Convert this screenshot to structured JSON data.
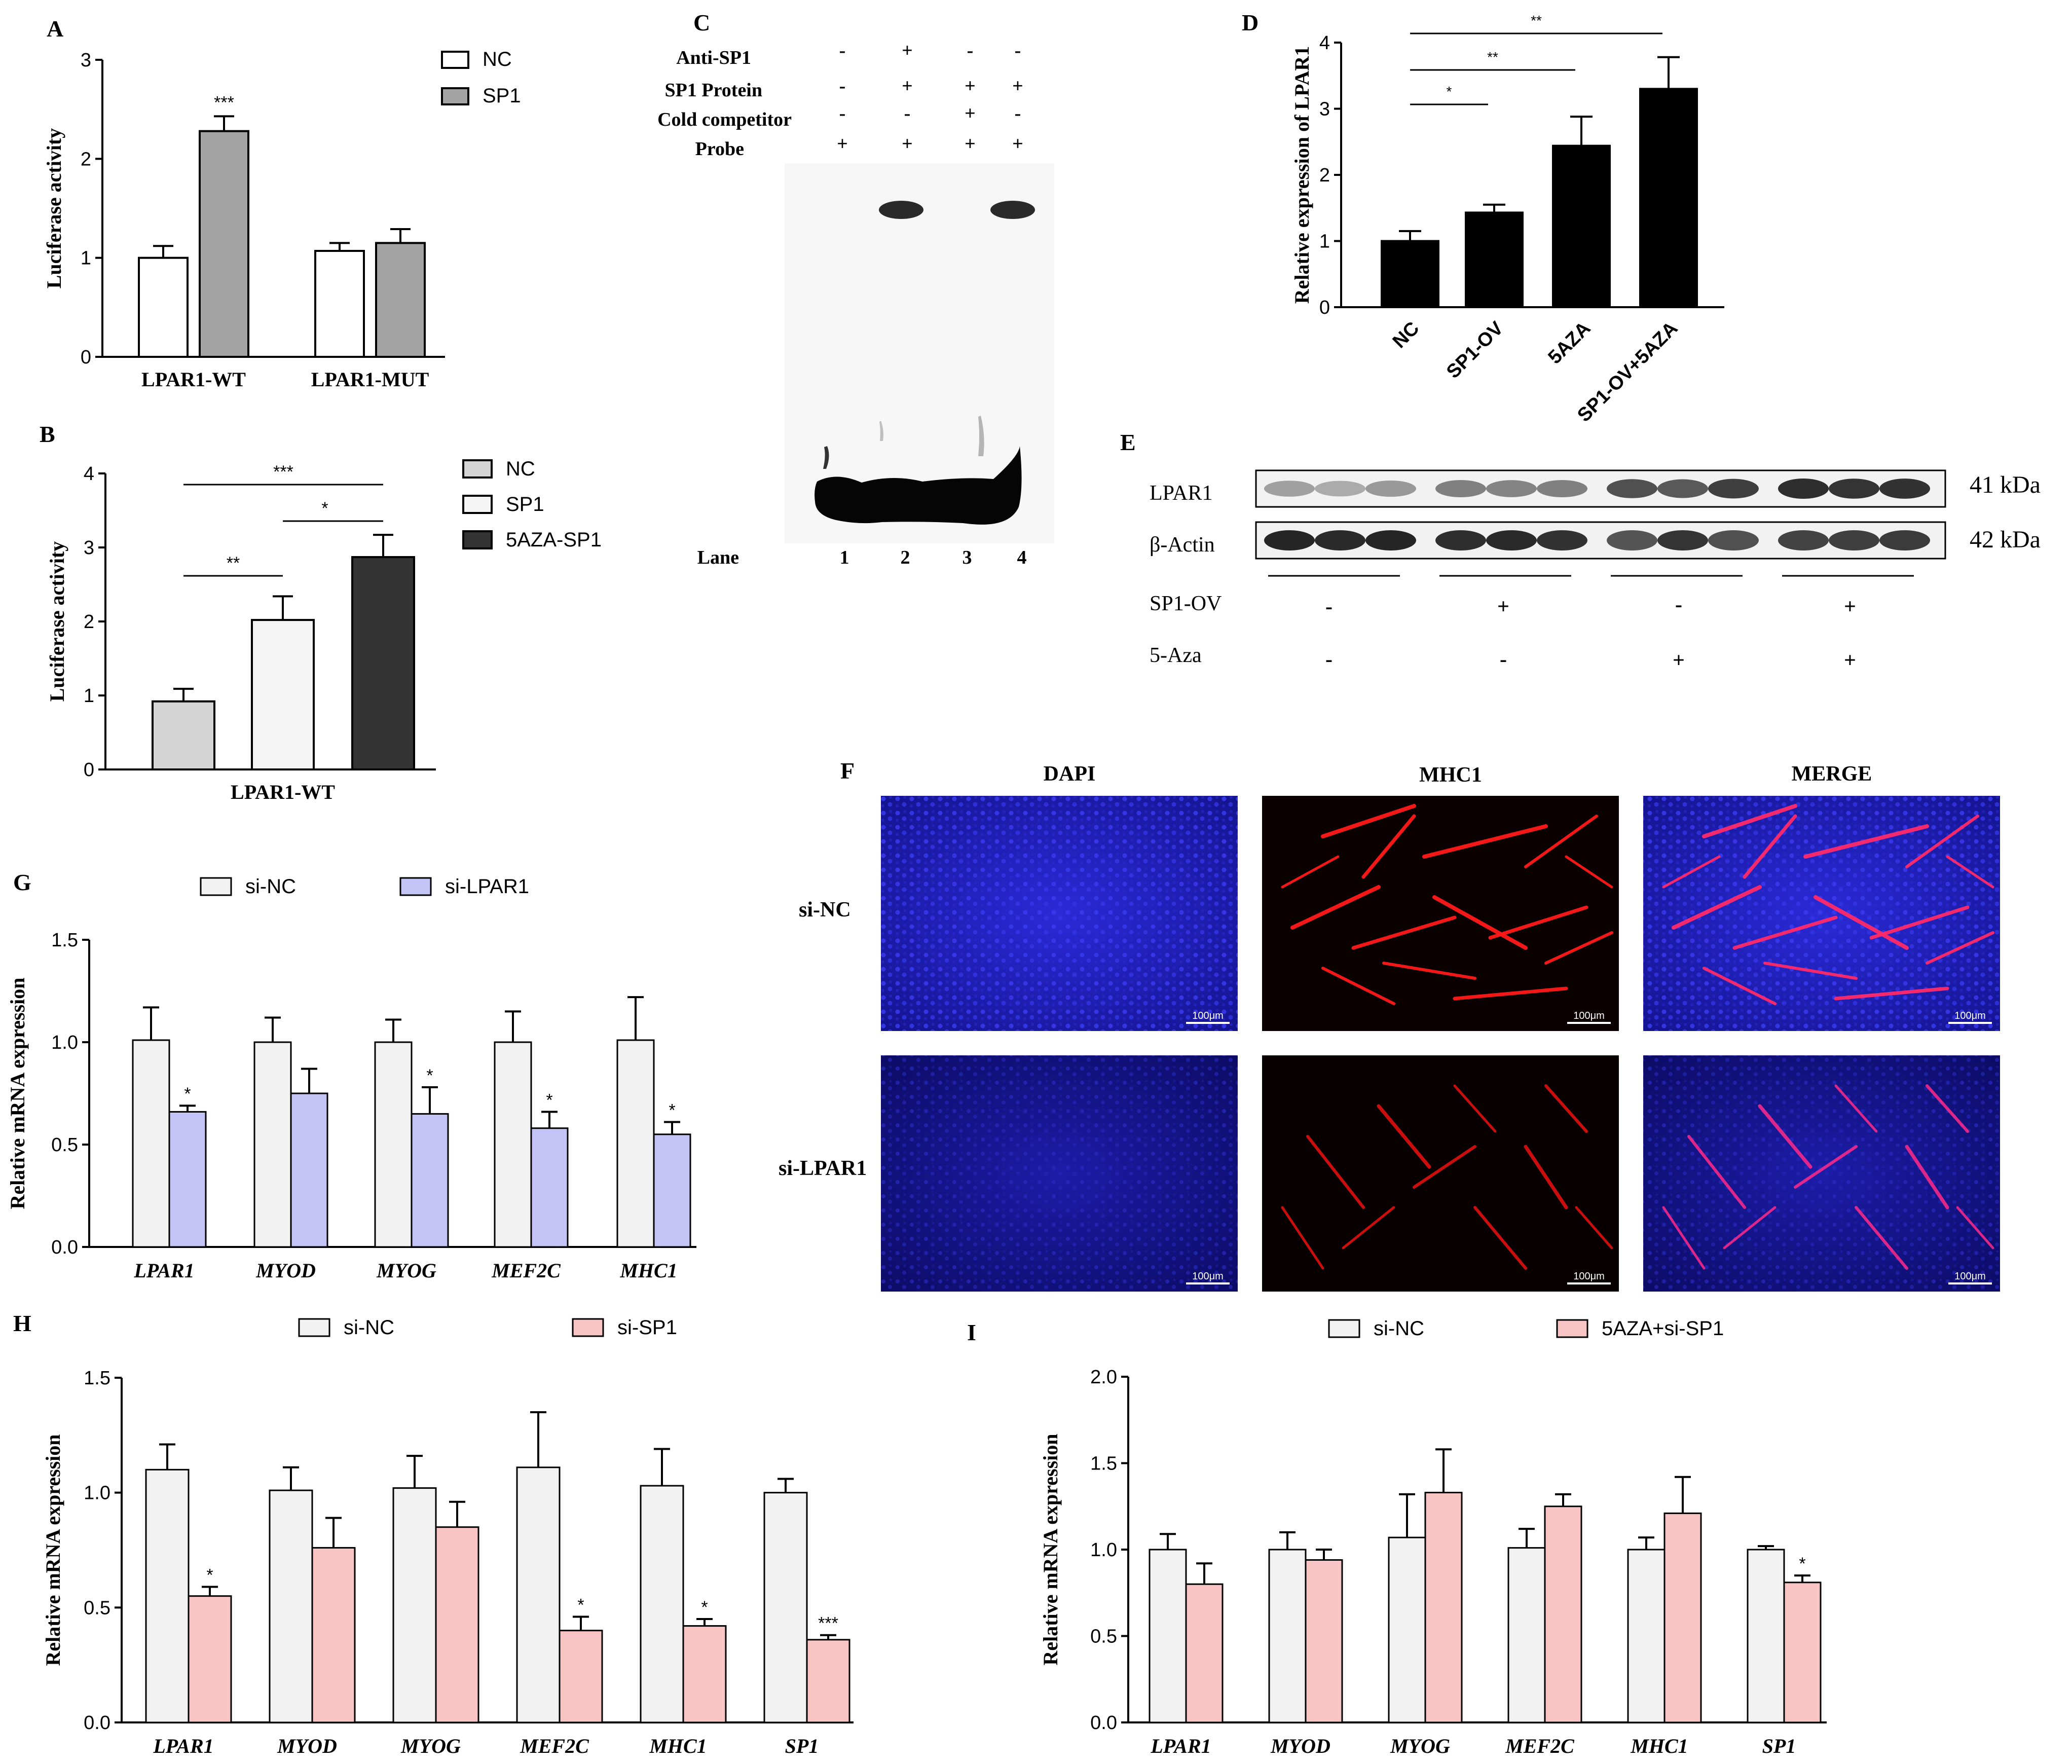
{
  "panels": {
    "A": "A",
    "B": "B",
    "C": "C",
    "D": "D",
    "E": "E",
    "F": "F",
    "G": "G",
    "H": "H",
    "I": "I"
  },
  "chart_data": [
    {
      "panel": "A",
      "type": "bar",
      "ylabel": "Luciferase activity",
      "ylim": [
        0,
        3
      ],
      "yticks": [
        "0",
        "1",
        "2",
        "3"
      ],
      "categories": [
        "LPAR1-WT",
        "LPAR1-MUT"
      ],
      "series": [
        {
          "name": "NC",
          "color": "#ffffff",
          "values": [
            1.0,
            1.07
          ],
          "err": [
            0.12,
            0.08
          ]
        },
        {
          "name": "SP1",
          "color": "#a3a3a3",
          "values": [
            2.28,
            1.15
          ],
          "err": [
            0.15,
            0.14
          ]
        }
      ],
      "sig": [
        {
          "text": "***",
          "category": 0,
          "series": 1
        }
      ]
    },
    {
      "panel": "B",
      "type": "bar",
      "ylabel": "Luciferase activity",
      "ylim": [
        0,
        4
      ],
      "yticks": [
        "0",
        "1",
        "2",
        "3",
        "4"
      ],
      "xlabel": "LPAR1-WT",
      "series": [
        {
          "name": "NC",
          "color": "#d4d4d4",
          "value": 0.92,
          "err": 0.17
        },
        {
          "name": "SP1",
          "color": "#f5f5f5",
          "value": 2.02,
          "err": 0.32
        },
        {
          "name": "5AZA-SP1",
          "color": "#333333",
          "value": 2.87,
          "err": 0.3
        }
      ],
      "brackets": [
        {
          "from": 0,
          "to": 1,
          "text": "**"
        },
        {
          "from": 1,
          "to": 2,
          "text": "*"
        },
        {
          "from": 0,
          "to": 2,
          "text": "***"
        }
      ]
    },
    {
      "panel": "D",
      "type": "bar",
      "ylabel": "Relative  expression of LPAR1",
      "ylim": [
        0,
        4
      ],
      "yticks": [
        "0",
        "1",
        "2",
        "3",
        "4"
      ],
      "categories": [
        "NC",
        "SP1-OV",
        "5AZA",
        "SP1-OV+5AZA"
      ],
      "values": [
        1.0,
        1.43,
        2.44,
        3.3
      ],
      "err": [
        0.15,
        0.12,
        0.44,
        0.48
      ],
      "brackets": [
        {
          "from": 0,
          "to": 1,
          "text": "*"
        },
        {
          "from": 0,
          "to": 2,
          "text": "**"
        },
        {
          "from": 0,
          "to": 3,
          "text": "**"
        }
      ]
    },
    {
      "panel": "G",
      "type": "bar",
      "ylabel": "Relative mRNA expression",
      "ylim": [
        0,
        1.5
      ],
      "yticks": [
        "0.0",
        "0.5",
        "1.0",
        "1.5"
      ],
      "categories": [
        "LPAR1",
        "MYOD",
        "MYOG",
        "MEF2C",
        "MHC1"
      ],
      "series": [
        {
          "name": "si-NC",
          "color": "#f2f2f2",
          "values": [
            1.01,
            1.0,
            1.0,
            1.0,
            1.01
          ],
          "err": [
            0.16,
            0.12,
            0.11,
            0.15,
            0.21
          ]
        },
        {
          "name": "si-LPAR1",
          "color": "#c3c3f5",
          "values": [
            0.66,
            0.75,
            0.65,
            0.58,
            0.55
          ],
          "err": [
            0.03,
            0.12,
            0.13,
            0.08,
            0.06
          ]
        }
      ],
      "sig": [
        "*",
        "",
        "*",
        "*",
        "*"
      ]
    },
    {
      "panel": "H",
      "type": "bar",
      "ylabel": "Relative mRNA expression",
      "ylim": [
        0,
        1.5
      ],
      "yticks": [
        "0.0",
        "0.5",
        "1.0",
        "1.5"
      ],
      "categories": [
        "LPAR1",
        "MYOD",
        "MYOG",
        "MEF2C",
        "MHC1",
        "SP1"
      ],
      "series": [
        {
          "name": "si-NC",
          "color": "#f2f2f2",
          "values": [
            1.1,
            1.01,
            1.02,
            1.11,
            1.03,
            1.0
          ],
          "err": [
            0.11,
            0.1,
            0.14,
            0.24,
            0.16,
            0.06
          ]
        },
        {
          "name": "si-SP1",
          "color": "#f9c4c4",
          "values": [
            0.55,
            0.76,
            0.85,
            0.4,
            0.42,
            0.36
          ],
          "err": [
            0.04,
            0.13,
            0.11,
            0.06,
            0.03,
            0.02
          ]
        }
      ],
      "sig": [
        "*",
        "",
        "",
        "*",
        "*",
        "***"
      ]
    },
    {
      "panel": "I",
      "type": "bar",
      "ylabel": "Relative mRNA expression",
      "ylim": [
        0,
        2.0
      ],
      "yticks": [
        "0.0",
        "0.5",
        "1.0",
        "1.5",
        "2.0"
      ],
      "categories": [
        "LPAR1",
        "MYOD",
        "MYOG",
        "MEF2C",
        "MHC1",
        "SP1"
      ],
      "series": [
        {
          "name": "si-NC",
          "color": "#f2f2f2",
          "values": [
            1.0,
            1.0,
            1.07,
            1.01,
            1.0,
            1.0
          ],
          "err": [
            0.09,
            0.1,
            0.25,
            0.11,
            0.07,
            0.02
          ]
        },
        {
          "name": "5AZA+si-SP1",
          "color": "#f9c4c4",
          "values": [
            0.8,
            0.94,
            1.33,
            1.25,
            1.21,
            0.81
          ],
          "err": [
            0.12,
            0.06,
            0.25,
            0.07,
            0.21,
            0.04
          ]
        }
      ],
      "sig": [
        "",
        "",
        "",
        "",
        "",
        "*"
      ]
    }
  ],
  "emsa": {
    "rows": [
      {
        "label": "Anti-SP1",
        "values": [
          "-",
          "+",
          "-",
          "-"
        ]
      },
      {
        "label": "SP1 Protein",
        "values": [
          "-",
          "+",
          "+",
          "+"
        ]
      },
      {
        "label": "Cold competitor",
        "values": [
          "-",
          "-",
          "+",
          "-"
        ]
      },
      {
        "label": "Probe",
        "values": [
          "+",
          "+",
          "+",
          "+"
        ]
      }
    ],
    "lane_label": "Lane",
    "lanes": [
      "1",
      "2",
      "3",
      "4"
    ]
  },
  "western": {
    "rows": [
      {
        "label": "LPAR1",
        "size": "41 kDa",
        "intensity": [
          0.35,
          0.3,
          0.38,
          0.5,
          0.48,
          0.5,
          0.72,
          0.68,
          0.8,
          0.88,
          0.85,
          0.86
        ]
      },
      {
        "label": "β-Actin",
        "size": "42 kDa",
        "intensity": [
          0.92,
          0.9,
          0.92,
          0.88,
          0.9,
          0.86,
          0.7,
          0.85,
          0.72,
          0.78,
          0.8,
          0.82
        ]
      }
    ],
    "conditions": [
      {
        "label": "SP1-OV",
        "values": [
          "-",
          "+",
          "-",
          "+"
        ]
      },
      {
        "label": "5-Aza",
        "values": [
          "-",
          "-",
          "+",
          "+"
        ]
      }
    ]
  },
  "immuno": {
    "columns": [
      "DAPI",
      "MHC1",
      "MERGE"
    ],
    "rows": [
      "si-NC",
      "si-LPAR1"
    ],
    "scale_bar": "100μm"
  }
}
